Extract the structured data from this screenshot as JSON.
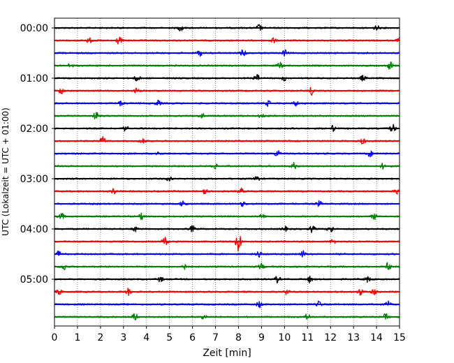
{
  "chart_data": {
    "type": "line",
    "title": "",
    "xlabel": "Zeit  [min]",
    "ylabel": "UTC (Lokalzeit = UTC + 01:00)",
    "xlim": [
      0,
      15
    ],
    "x_ticks": [
      0,
      1,
      2,
      3,
      4,
      5,
      6,
      7,
      8,
      9,
      10,
      11,
      12,
      13,
      14,
      15
    ],
    "y_tick_labels": [
      "00:00",
      "01:00",
      "02:00",
      "03:00",
      "04:00",
      "05:00"
    ],
    "trace_interval_min": 15,
    "grid": "vertical dotted at each minute",
    "traces": [
      {
        "start": "00:00",
        "color": "#000000",
        "events": [
          [
            5.5,
            1.0
          ],
          [
            8.9,
            1.1
          ],
          [
            14.0,
            0.8
          ]
        ]
      },
      {
        "start": "00:15",
        "color": "#ff0000",
        "events": [
          [
            1.5,
            0.8
          ],
          [
            2.8,
            1.2
          ],
          [
            9.5,
            0.9
          ],
          [
            15.0,
            0.8
          ]
        ]
      },
      {
        "start": "00:30",
        "color": "#0000ff",
        "events": [
          [
            6.3,
            1.0
          ],
          [
            8.2,
            1.0
          ],
          [
            10.0,
            0.9
          ]
        ]
      },
      {
        "start": "00:45",
        "color": "#008000",
        "events": [
          [
            0.7,
            0.8
          ],
          [
            9.8,
            1.0
          ],
          [
            14.6,
            1.3
          ]
        ]
      },
      {
        "start": "01:00",
        "color": "#000000",
        "events": [
          [
            3.6,
            1.0
          ],
          [
            8.8,
            1.1
          ],
          [
            10.0,
            0.8
          ],
          [
            13.4,
            0.8
          ]
        ]
      },
      {
        "start": "01:15",
        "color": "#ff0000",
        "events": [
          [
            0.3,
            1.0
          ],
          [
            3.6,
            0.9
          ],
          [
            11.2,
            1.3
          ]
        ]
      },
      {
        "start": "01:30",
        "color": "#0000ff",
        "events": [
          [
            2.9,
            0.8
          ],
          [
            4.5,
            0.8
          ],
          [
            9.3,
            0.8
          ],
          [
            10.5,
            0.8
          ]
        ]
      },
      {
        "start": "01:45",
        "color": "#008000",
        "events": [
          [
            1.8,
            1.2
          ],
          [
            6.4,
            1.0
          ],
          [
            9.0,
            0.8
          ]
        ]
      },
      {
        "start": "02:00",
        "color": "#000000",
        "events": [
          [
            3.1,
            0.8
          ],
          [
            12.1,
            0.9
          ],
          [
            14.7,
            1.3
          ]
        ]
      },
      {
        "start": "02:15",
        "color": "#ff0000",
        "events": [
          [
            2.1,
            1.2
          ],
          [
            3.8,
            0.8
          ],
          [
            13.4,
            0.9
          ]
        ]
      },
      {
        "start": "02:30",
        "color": "#0000ff",
        "events": [
          [
            4.5,
            0.8
          ],
          [
            9.7,
            1.1
          ],
          [
            13.7,
            1.0
          ]
        ]
      },
      {
        "start": "02:45",
        "color": "#008000",
        "events": [
          [
            7.0,
            0.8
          ],
          [
            10.4,
            1.0
          ],
          [
            14.3,
            0.9
          ]
        ]
      },
      {
        "start": "03:00",
        "color": "#000000",
        "events": [
          [
            5.0,
            0.8
          ],
          [
            8.8,
            0.8
          ]
        ]
      },
      {
        "start": "03:15",
        "color": "#ff0000",
        "events": [
          [
            2.6,
            0.9
          ],
          [
            6.5,
            1.0
          ],
          [
            8.1,
            0.9
          ],
          [
            14.9,
            1.0
          ]
        ]
      },
      {
        "start": "03:30",
        "color": "#0000ff",
        "events": [
          [
            5.6,
            1.2
          ],
          [
            8.2,
            0.8
          ],
          [
            11.5,
            0.8
          ]
        ]
      },
      {
        "start": "03:45",
        "color": "#008000",
        "events": [
          [
            0.3,
            1.0
          ],
          [
            3.8,
            0.9
          ],
          [
            9.0,
            0.9
          ],
          [
            13.9,
            0.9
          ]
        ]
      },
      {
        "start": "04:00",
        "color": "#000000",
        "events": [
          [
            3.5,
            0.8
          ],
          [
            6.0,
            1.0
          ],
          [
            10.0,
            0.8
          ],
          [
            11.2,
            1.0
          ],
          [
            12.0,
            1.4
          ]
        ]
      },
      {
        "start": "04:15",
        "color": "#ff0000",
        "events": [
          [
            4.8,
            1.2
          ],
          [
            8.0,
            3.5
          ],
          [
            12.1,
            0.8
          ]
        ]
      },
      {
        "start": "04:30",
        "color": "#0000ff",
        "events": [
          [
            0.2,
            1.1
          ],
          [
            8.9,
            1.0
          ],
          [
            10.8,
            1.0
          ]
        ]
      },
      {
        "start": "04:45",
        "color": "#008000",
        "events": [
          [
            0.4,
            1.0
          ],
          [
            5.6,
            1.1
          ],
          [
            9.0,
            0.9
          ],
          [
            14.5,
            1.2
          ]
        ]
      },
      {
        "start": "05:00",
        "color": "#000000",
        "events": [
          [
            4.6,
            0.8
          ],
          [
            9.7,
            1.0
          ],
          [
            11.1,
            1.0
          ],
          [
            13.6,
            0.9
          ]
        ]
      },
      {
        "start": "05:15",
        "color": "#ff0000",
        "events": [
          [
            0.2,
            0.8
          ],
          [
            3.2,
            1.0
          ],
          [
            10.1,
            0.8
          ],
          [
            13.3,
            1.0
          ],
          [
            13.9,
            1.0
          ]
        ]
      },
      {
        "start": "05:30",
        "color": "#0000ff",
        "events": [
          [
            8.9,
            1.0
          ],
          [
            11.5,
            0.9
          ],
          [
            14.5,
            0.9
          ]
        ]
      },
      {
        "start": "05:45",
        "color": "#008000",
        "events": [
          [
            3.5,
            1.1
          ],
          [
            6.5,
            1.0
          ],
          [
            11.0,
            1.0
          ],
          [
            14.4,
            1.0
          ]
        ]
      }
    ]
  }
}
